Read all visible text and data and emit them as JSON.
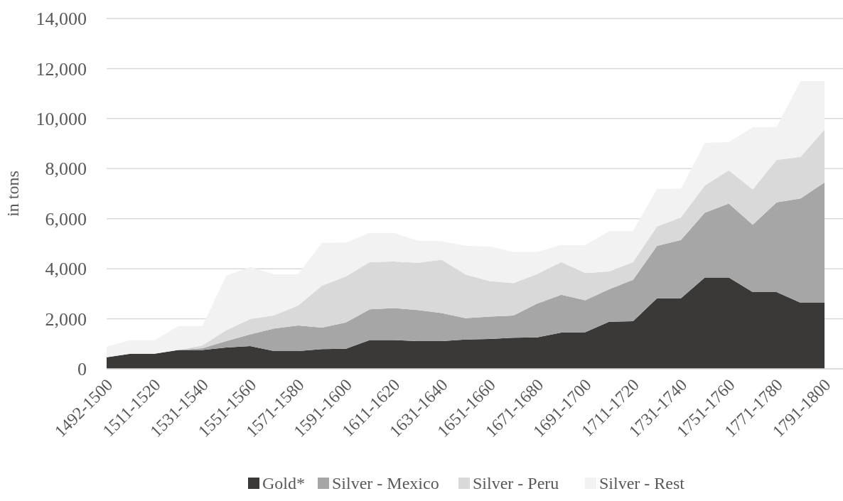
{
  "chart_data": {
    "type": "area",
    "stacked": true,
    "ylabel": "in tons",
    "categories": [
      "1492-1500",
      null,
      "1511-1520",
      null,
      "1531-1540",
      null,
      "1551-1560",
      null,
      "1571-1580",
      null,
      "1591-1600",
      null,
      "1611-1620",
      null,
      "1631-1640",
      null,
      "1651-1660",
      null,
      "1671-1680",
      null,
      "1691-1700",
      null,
      "1711-1720",
      null,
      "1731-1740",
      null,
      "1751-1760",
      null,
      "1771-1780",
      null,
      "1791-1800"
    ],
    "series": [
      {
        "name": "Gold*",
        "color": "#3a3938",
        "values": [
          460,
          600,
          600,
          750,
          750,
          850,
          910,
          710,
          710,
          790,
          800,
          1150,
          1150,
          1110,
          1110,
          1170,
          1190,
          1240,
          1260,
          1450,
          1460,
          1880,
          1900,
          2820,
          2820,
          3650,
          3650,
          3070,
          3070,
          2640,
          2640
        ]
      },
      {
        "name": "Silver - Mexico",
        "color": "#a6a6a6",
        "values": [
          0,
          0,
          0,
          0,
          70,
          260,
          470,
          900,
          1020,
          860,
          1050,
          1230,
          1280,
          1240,
          1120,
          850,
          900,
          890,
          1350,
          1510,
          1280,
          1300,
          1660,
          2090,
          2330,
          2590,
          2950,
          2690,
          3580,
          4170,
          4810
        ]
      },
      {
        "name": "Silver - Peru",
        "color": "#d9d9d9",
        "values": [
          0,
          0,
          0,
          0,
          120,
          430,
          610,
          530,
          800,
          1670,
          1840,
          1890,
          1860,
          1890,
          2130,
          1750,
          1420,
          1290,
          1180,
          1310,
          1090,
          710,
          710,
          780,
          900,
          1090,
          1330,
          1410,
          1700,
          1660,
          2110
        ]
      },
      {
        "name": "Silver - Rest",
        "color": "#f2f2f2",
        "values": [
          430,
          540,
          540,
          960,
          770,
          2180,
          2080,
          1640,
          1250,
          1710,
          1360,
          1160,
          1140,
          880,
          740,
          1140,
          1380,
          1250,
          880,
          680,
          1110,
          1610,
          1230,
          1500,
          1150,
          1700,
          1130,
          2480,
          1320,
          3030,
          1940
        ]
      }
    ],
    "ylim": [
      0,
      14000
    ],
    "yticks": [
      {
        "value": 0,
        "label": "0"
      },
      {
        "value": 2000,
        "label": "2,000"
      },
      {
        "value": 4000,
        "label": "4,000"
      },
      {
        "value": 6000,
        "label": "6,000"
      },
      {
        "value": 8000,
        "label": "8,000"
      },
      {
        "value": 10000,
        "label": "10,000"
      },
      {
        "value": 12000,
        "label": "12,000"
      },
      {
        "value": 14000,
        "label": "14,000"
      }
    ],
    "grid": "y",
    "legend": "bottom"
  }
}
